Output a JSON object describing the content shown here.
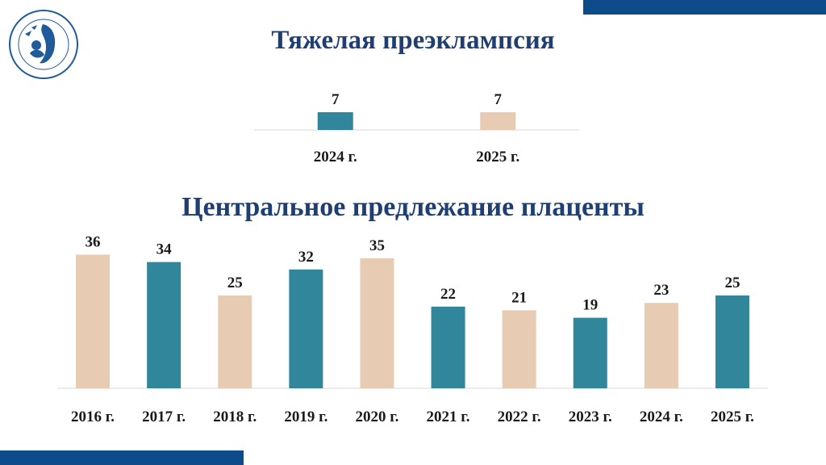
{
  "colors": {
    "navy": "#0e4b8a",
    "title": "#1f3f73",
    "teal": "#31869b",
    "beige": "#e8cbb3",
    "axis": "#d9d9d9"
  },
  "logo": {
    "icon": "mother-child-emblem-icon"
  },
  "chart_data": [
    {
      "type": "bar",
      "title": "Тяжелая преэклампсия",
      "categories": [
        "2024 г.",
        "2025 г."
      ],
      "values": [
        7,
        7
      ],
      "bar_colors": [
        "#31869b",
        "#e8cbb3"
      ],
      "xlabel": "",
      "ylabel": "",
      "grid": false
    },
    {
      "type": "bar",
      "title": "Центральное предлежание плаценты",
      "categories": [
        "2016 г.",
        "2017 г.",
        "2018 г.",
        "2019 г.",
        "2020 г.",
        "2021 г.",
        "2022 г.",
        "2023 г.",
        "2024 г.",
        "2025 г."
      ],
      "values": [
        36,
        34,
        25,
        32,
        35,
        22,
        21,
        19,
        23,
        25
      ],
      "bar_colors": [
        "#e8cbb3",
        "#31869b",
        "#e8cbb3",
        "#31869b",
        "#e8cbb3",
        "#31869b",
        "#e8cbb3",
        "#31869b",
        "#e8cbb3",
        "#31869b"
      ],
      "xlabel": "",
      "ylabel": "",
      "grid": false
    }
  ]
}
